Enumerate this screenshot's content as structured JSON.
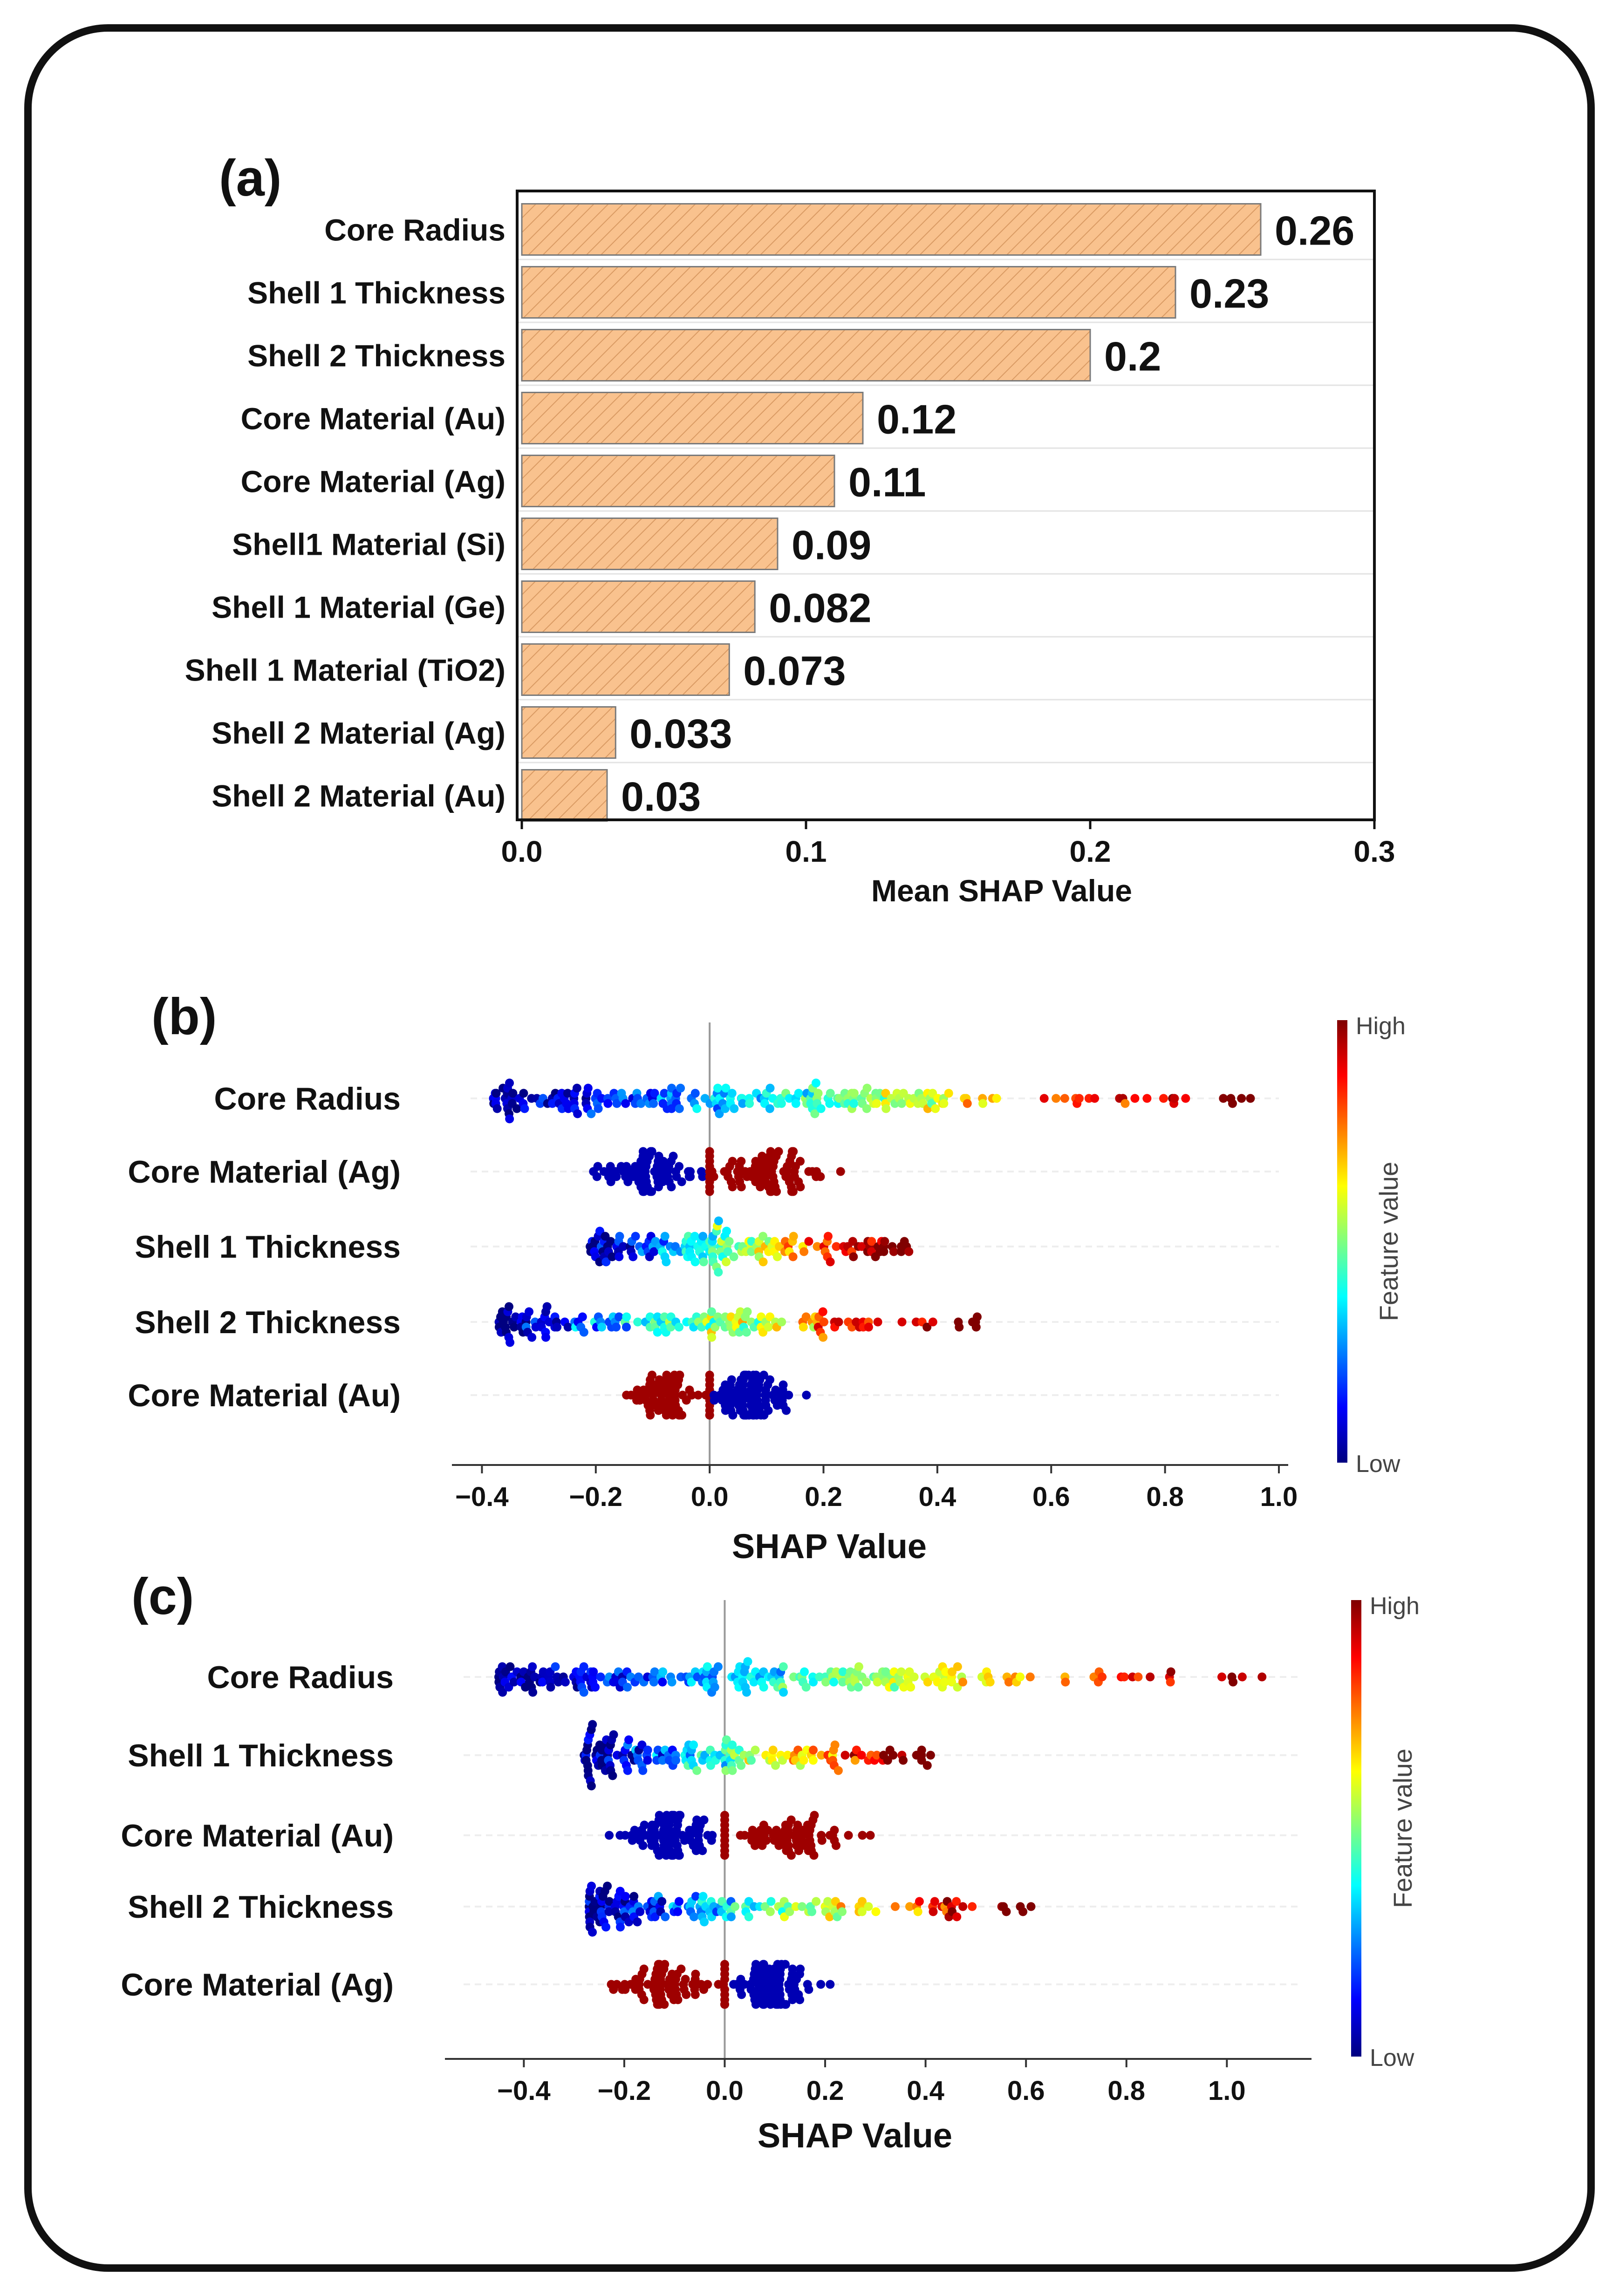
{
  "chart_data": [
    {
      "panel": "(a)",
      "type": "bar",
      "orientation": "horizontal",
      "categories": [
        "Core Radius",
        "Shell 1 Thickness",
        "Shell 2 Thickness",
        "Core Material (Au)",
        "Core Material (Ag)",
        "Shell1 Material (Si)",
        "Shell 1 Material (Ge)",
        "Shell 1 Material (TiO2)",
        "Shell 2 Material (Ag)",
        "Shell 2 Material (Au)"
      ],
      "values": [
        0.26,
        0.23,
        0.2,
        0.12,
        0.11,
        0.09,
        0.082,
        0.073,
        0.033,
        0.03
      ],
      "value_labels": [
        "0.26",
        "0.23",
        "0.2",
        "0.12",
        "0.11",
        "0.09",
        "0.082",
        "0.073",
        "0.033",
        "0.03"
      ],
      "xlabel": "Mean SHAP Value",
      "xlim": [
        0,
        0.3
      ],
      "xticks": [
        "0.0",
        "0.1",
        "0.2",
        "0.3"
      ],
      "bar_color": "#f9c28e"
    },
    {
      "panel": "(b)",
      "type": "scatter",
      "subtype": "shap-beeswarm",
      "features": [
        "Core Radius",
        "Core Material (Ag)",
        "Shell 1 Thickness",
        "Shell 2 Thickness",
        "Core Material (Au)"
      ],
      "feature_ranges": [
        [
          -0.38,
          0.95
        ],
        [
          -0.22,
          0.23
        ],
        [
          -0.21,
          0.35
        ],
        [
          -0.37,
          0.47
        ],
        [
          -0.15,
          0.17
        ]
      ],
      "xlabel": "SHAP Value",
      "xlim": [
        -0.42,
        1.0
      ],
      "xticks": [
        "−0.4",
        "−0.2",
        "0.0",
        "0.2",
        "0.4",
        "0.6",
        "0.8",
        "1.0"
      ],
      "colorbar": {
        "label": "Feature value",
        "high": "High",
        "low": "Low"
      }
    },
    {
      "panel": "(c)",
      "type": "scatter",
      "subtype": "shap-beeswarm",
      "features": [
        "Core Radius",
        "Shell 1 Thickness",
        "Core Material (Au)",
        "Shell 2 Thickness",
        "Core Material (Ag)"
      ],
      "feature_ranges": [
        [
          -0.45,
          1.07
        ],
        [
          -0.28,
          0.41
        ],
        [
          -0.23,
          0.29
        ],
        [
          -0.27,
          0.61
        ],
        [
          -0.25,
          0.21
        ]
      ],
      "xlabel": "SHAP Value",
      "xlim": [
        -0.52,
        1.15
      ],
      "xticks": [
        "−0.4",
        "−0.2",
        "0.0",
        "0.2",
        "0.4",
        "0.6",
        "0.8",
        "1.0"
      ],
      "colorbar": {
        "label": "Feature value",
        "high": "High",
        "low": "Low"
      }
    }
  ]
}
